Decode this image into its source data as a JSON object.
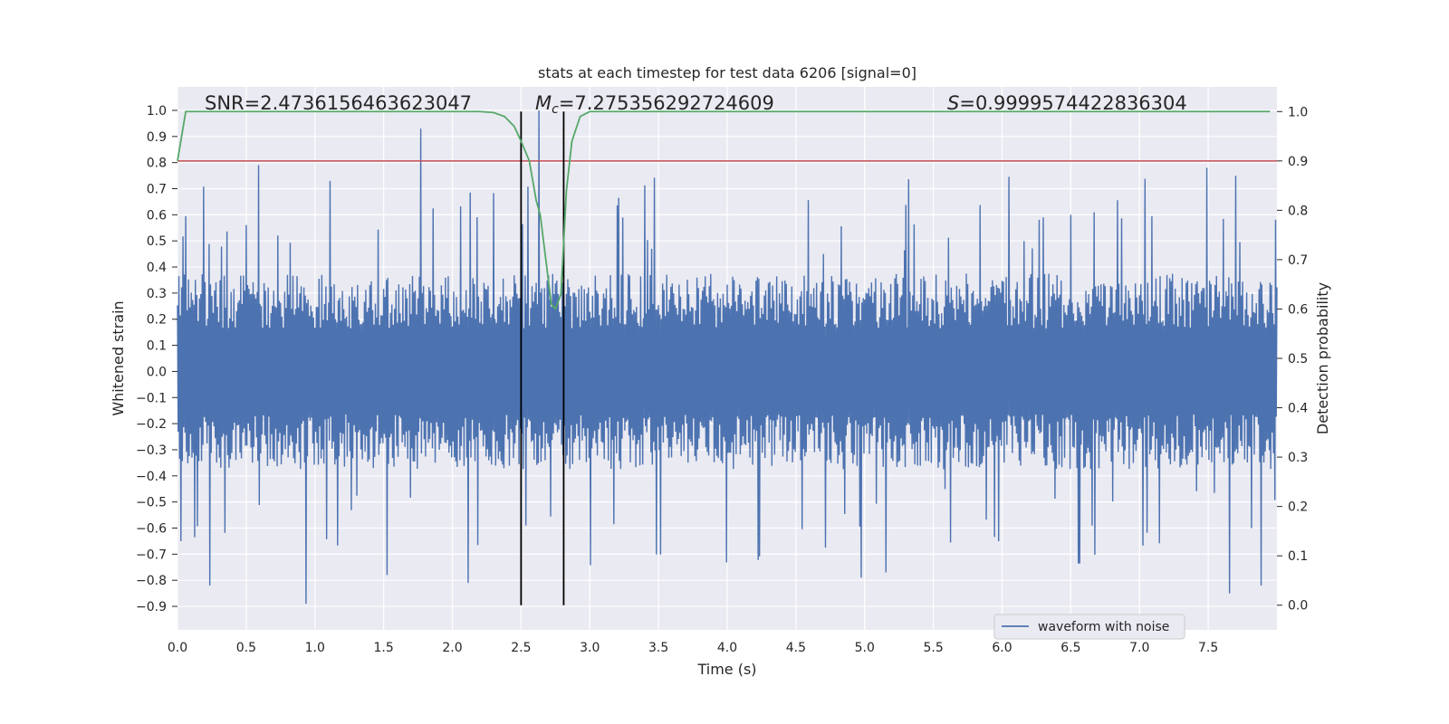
{
  "chart_data": {
    "type": "line",
    "title": "stats at each timestep for test data 6206 [signal=0]",
    "xlabel": "Time (s)",
    "ylabel_left": "Whitened strain",
    "ylabel_right": "Detection probability",
    "xlim": [
      0.0,
      8.0
    ],
    "ylim_left": [
      -0.99,
      1.09
    ],
    "ylim_right": [
      -0.05,
      1.05
    ],
    "xticks": [
      "0.0",
      "0.5",
      "1.0",
      "1.5",
      "2.0",
      "2.5",
      "3.0",
      "3.5",
      "4.0",
      "4.5",
      "5.0",
      "5.5",
      "6.0",
      "6.5",
      "7.0",
      "7.5"
    ],
    "yticks_left": [
      "1.0",
      "0.9",
      "0.8",
      "0.7",
      "0.6",
      "0.5",
      "0.4",
      "0.3",
      "0.2",
      "0.1",
      "0.0",
      "−0.1",
      "−0.2",
      "−0.3",
      "−0.4",
      "−0.5",
      "−0.6",
      "−0.7",
      "−0.8",
      "−0.9"
    ],
    "yticks_right": [
      "1.0",
      "0.9",
      "0.8",
      "0.7",
      "0.6",
      "0.5",
      "0.4",
      "0.3",
      "0.2",
      "0.1",
      "0.0"
    ],
    "grid": true,
    "legend": {
      "position": "bottom-right",
      "entries": [
        "waveform with noise"
      ]
    },
    "annotations": {
      "snr_text": "SNR=2.4736156463623047",
      "mc_symbol": "M",
      "mc_sub": "c",
      "mc_value": "=7.275356292724609",
      "s_symbol": "S",
      "s_value": "=0.9999574422836304"
    },
    "vertical_lines": [
      2.5,
      2.81
    ],
    "threshold": {
      "axis": "right",
      "value": 0.9,
      "color": "#c44e52"
    },
    "waveform": {
      "name": "waveform with noise",
      "color": "#4c72b0",
      "x_range": [
        0.0,
        8.0
      ],
      "typical_envelope": [
        -0.3,
        0.3
      ],
      "notable_peaks": [
        {
          "x": 1.77,
          "y": 0.93
        },
        {
          "x": 2.63,
          "y": 1.0
        },
        {
          "x": 0.59,
          "y": 0.79
        },
        {
          "x": 7.49,
          "y": 0.78
        },
        {
          "x": 7.7,
          "y": 0.75
        },
        {
          "x": 1.11,
          "y": 0.73
        }
      ],
      "notable_troughs": [
        {
          "x": 0.94,
          "y": -0.89
        },
        {
          "x": 0.24,
          "y": -0.82
        },
        {
          "x": 7.66,
          "y": -0.85
        },
        {
          "x": 1.53,
          "y": -0.78
        },
        {
          "x": 2.12,
          "y": -0.81
        },
        {
          "x": 4.98,
          "y": -0.79
        },
        {
          "x": 5.16,
          "y": -0.77
        },
        {
          "x": 7.89,
          "y": -0.82
        }
      ]
    },
    "detection_probability": {
      "color": "#55a868",
      "axis": "right",
      "x": [
        0.0,
        0.06,
        0.15,
        2.1,
        2.2,
        2.3,
        2.38,
        2.45,
        2.5,
        2.56,
        2.61,
        2.64,
        2.68,
        2.72,
        2.75,
        2.79,
        2.83,
        2.87,
        2.93,
        3.0,
        7.95
      ],
      "y": [
        0.9,
        1.0,
        1.0,
        1.0,
        1.0,
        0.998,
        0.99,
        0.97,
        0.94,
        0.9,
        0.82,
        0.79,
        0.7,
        0.61,
        0.6,
        0.63,
        0.84,
        0.94,
        0.99,
        1.0,
        1.0
      ]
    }
  }
}
